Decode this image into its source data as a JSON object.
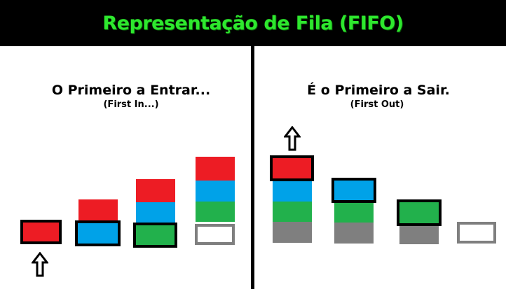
{
  "header": {
    "title": "Representação de Fila (FIFO)"
  },
  "left_panel": {
    "title": "O Primeiro a Entrar...",
    "subtitle": "(First In...)"
  },
  "right_panel": {
    "title": "É o Primeiro a Sair.",
    "subtitle": "(First Out)"
  },
  "colors": {
    "header_bg": "#000000",
    "title_green": "#2ee82e",
    "red": "#ed1c24",
    "blue": "#00a2e8",
    "green": "#22b14c",
    "gray": "#7f7f7f"
  },
  "icons": {
    "enqueue_arrow": "up-arrow-icon",
    "dequeue_arrow": "up-arrow-icon"
  }
}
